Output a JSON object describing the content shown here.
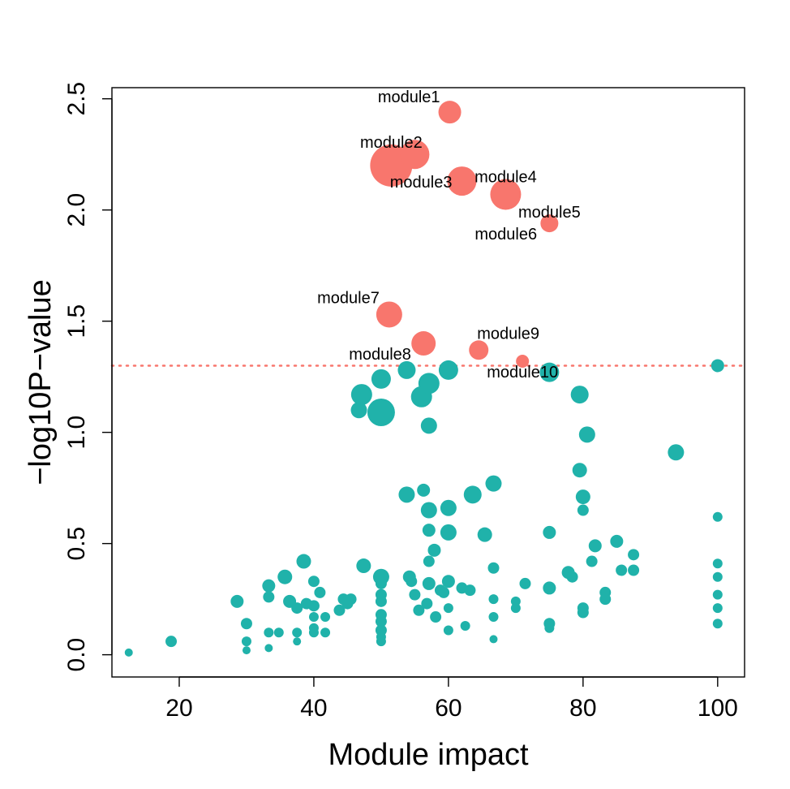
{
  "chart_data": {
    "type": "scatter",
    "title": "",
    "xlabel": "Module impact",
    "ylabel": "−log10P−value",
    "xlim": [
      10,
      104
    ],
    "ylim": [
      -0.1,
      2.55
    ],
    "xticks": [
      "20",
      "40",
      "60",
      "80",
      "100"
    ],
    "yticks": [
      "0.0",
      "0.5",
      "1.0",
      "1.5",
      "2.0",
      "2.5"
    ],
    "grid": false,
    "threshold": {
      "value": 1.3,
      "color": "#F8766D",
      "style": "dotted"
    },
    "colors": {
      "significant": "#F8766D",
      "nonsignificant": "#20B2AA"
    },
    "labeled_points": [
      {
        "label": "module1",
        "x": 60.2,
        "y": 2.44,
        "size": 14,
        "label_pos": "above-left"
      },
      {
        "label": "module2",
        "x": 51.5,
        "y": 2.2,
        "size": 26,
        "label_pos": "above"
      },
      {
        "label": "module2",
        "x": 55.0,
        "y": 2.25,
        "size": 18,
        "label_pos": "none"
      },
      {
        "label": "module3",
        "x": 62.0,
        "y": 2.13,
        "size": 18,
        "label_pos": "left"
      },
      {
        "label": "module4",
        "x": 68.5,
        "y": 2.07,
        "size": 19,
        "label_pos": "above"
      },
      {
        "label": "module5",
        "x": 75.0,
        "y": 1.94,
        "size": 11,
        "label_pos": "above"
      },
      {
        "label": "module6",
        "x": 75.0,
        "y": 1.94,
        "size": 0,
        "label_pos": "below-left"
      },
      {
        "label": "module7",
        "x": 51.2,
        "y": 1.53,
        "size": 16,
        "label_pos": "above-left"
      },
      {
        "label": "module8",
        "x": 56.3,
        "y": 1.4,
        "size": 15,
        "label_pos": "below-left"
      },
      {
        "label": "module9",
        "x": 64.5,
        "y": 1.37,
        "size": 12,
        "label_pos": "above-right"
      },
      {
        "label": "module10",
        "x": 71.0,
        "y": 1.32,
        "size": 8,
        "label_pos": "below"
      }
    ],
    "points": [
      [
        12.5,
        0.01,
        5
      ],
      [
        18.8,
        0.06,
        7
      ],
      [
        28.6,
        0.24,
        8
      ],
      [
        30.0,
        0.14,
        7
      ],
      [
        30.0,
        0.06,
        6
      ],
      [
        30.0,
        0.02,
        5
      ],
      [
        33.3,
        0.31,
        8
      ],
      [
        33.3,
        0.26,
        7
      ],
      [
        33.3,
        0.1,
        6
      ],
      [
        33.3,
        0.03,
        5
      ],
      [
        34.8,
        0.1,
        6
      ],
      [
        35.7,
        0.35,
        9
      ],
      [
        36.4,
        0.24,
        8
      ],
      [
        37.5,
        0.21,
        7
      ],
      [
        37.5,
        0.1,
        6
      ],
      [
        37.5,
        0.06,
        5
      ],
      [
        38.5,
        0.42,
        9
      ],
      [
        38.9,
        0.23,
        7
      ],
      [
        40.0,
        0.33,
        7
      ],
      [
        40.0,
        0.22,
        7
      ],
      [
        40.0,
        0.17,
        6
      ],
      [
        40.0,
        0.12,
        6
      ],
      [
        40.0,
        0.1,
        6
      ],
      [
        40.9,
        0.28,
        7
      ],
      [
        41.7,
        0.17,
        6
      ],
      [
        41.7,
        0.1,
        6
      ],
      [
        43.8,
        0.2,
        7
      ],
      [
        44.4,
        0.25,
        7
      ],
      [
        45.0,
        0.23,
        7
      ],
      [
        45.5,
        0.25,
        7
      ],
      [
        46.7,
        1.1,
        10
      ],
      [
        47.1,
        1.17,
        13
      ],
      [
        47.4,
        0.4,
        9
      ],
      [
        50.0,
        1.24,
        12
      ],
      [
        50.0,
        1.09,
        17
      ],
      [
        50.0,
        0.35,
        10
      ],
      [
        50.0,
        0.32,
        7
      ],
      [
        50.0,
        0.27,
        7
      ],
      [
        50.0,
        0.24,
        7
      ],
      [
        50.0,
        0.18,
        7
      ],
      [
        50.0,
        0.15,
        7
      ],
      [
        50.0,
        0.11,
        7
      ],
      [
        50.0,
        0.08,
        6
      ],
      [
        50.0,
        0.06,
        6
      ],
      [
        53.8,
        1.28,
        11
      ],
      [
        53.8,
        0.72,
        10
      ],
      [
        54.2,
        0.35,
        8
      ],
      [
        54.5,
        0.33,
        7
      ],
      [
        55.0,
        0.27,
        7
      ],
      [
        55.6,
        0.2,
        7
      ],
      [
        56.0,
        1.16,
        13
      ],
      [
        56.3,
        0.74,
        8
      ],
      [
        56.8,
        0.23,
        7
      ],
      [
        57.1,
        1.22,
        13
      ],
      [
        57.1,
        1.03,
        10
      ],
      [
        57.1,
        0.65,
        10
      ],
      [
        57.1,
        0.56,
        8
      ],
      [
        57.1,
        0.42,
        7
      ],
      [
        57.1,
        0.32,
        8
      ],
      [
        57.9,
        0.47,
        8
      ],
      [
        58.1,
        0.17,
        7
      ],
      [
        58.8,
        0.29,
        7
      ],
      [
        59.3,
        0.28,
        7
      ],
      [
        60.0,
        1.28,
        12
      ],
      [
        60.0,
        0.66,
        10
      ],
      [
        60.0,
        0.55,
        10
      ],
      [
        60.0,
        0.33,
        8
      ],
      [
        60.0,
        0.21,
        6
      ],
      [
        60.0,
        0.11,
        6
      ],
      [
        62.0,
        0.3,
        7
      ],
      [
        62.5,
        0.13,
        6
      ],
      [
        63.2,
        0.29,
        7
      ],
      [
        63.6,
        0.72,
        11
      ],
      [
        65.4,
        0.54,
        9
      ],
      [
        66.7,
        0.77,
        10
      ],
      [
        66.7,
        0.39,
        7
      ],
      [
        66.7,
        0.25,
        6
      ],
      [
        66.7,
        0.17,
        6
      ],
      [
        66.7,
        0.07,
        5
      ],
      [
        70.0,
        0.24,
        6
      ],
      [
        70.0,
        0.21,
        6
      ],
      [
        71.4,
        0.32,
        7
      ],
      [
        75.0,
        1.27,
        12
      ],
      [
        75.0,
        0.55,
        8
      ],
      [
        75.0,
        0.3,
        8
      ],
      [
        75.0,
        0.14,
        7
      ],
      [
        75.0,
        0.12,
        6
      ],
      [
        77.8,
        0.37,
        8
      ],
      [
        78.4,
        0.35,
        7
      ],
      [
        79.5,
        1.17,
        11
      ],
      [
        79.5,
        0.83,
        9
      ],
      [
        80.0,
        0.71,
        9
      ],
      [
        80.0,
        0.65,
        7
      ],
      [
        80.0,
        0.21,
        7
      ],
      [
        80.0,
        0.19,
        7
      ],
      [
        80.6,
        0.99,
        10
      ],
      [
        81.3,
        0.42,
        7
      ],
      [
        81.8,
        0.49,
        8
      ],
      [
        83.3,
        0.28,
        7
      ],
      [
        83.3,
        0.25,
        7
      ],
      [
        85.0,
        0.51,
        8
      ],
      [
        85.7,
        0.38,
        7
      ],
      [
        87.5,
        0.45,
        7
      ],
      [
        87.5,
        0.38,
        7
      ],
      [
        93.8,
        0.91,
        10
      ],
      [
        100.0,
        1.3,
        8
      ],
      [
        100.0,
        0.62,
        6
      ],
      [
        100.0,
        0.41,
        6
      ],
      [
        100.0,
        0.35,
        6
      ],
      [
        100.0,
        0.27,
        6
      ],
      [
        100.0,
        0.21,
        6
      ],
      [
        100.0,
        0.14,
        6
      ]
    ]
  }
}
